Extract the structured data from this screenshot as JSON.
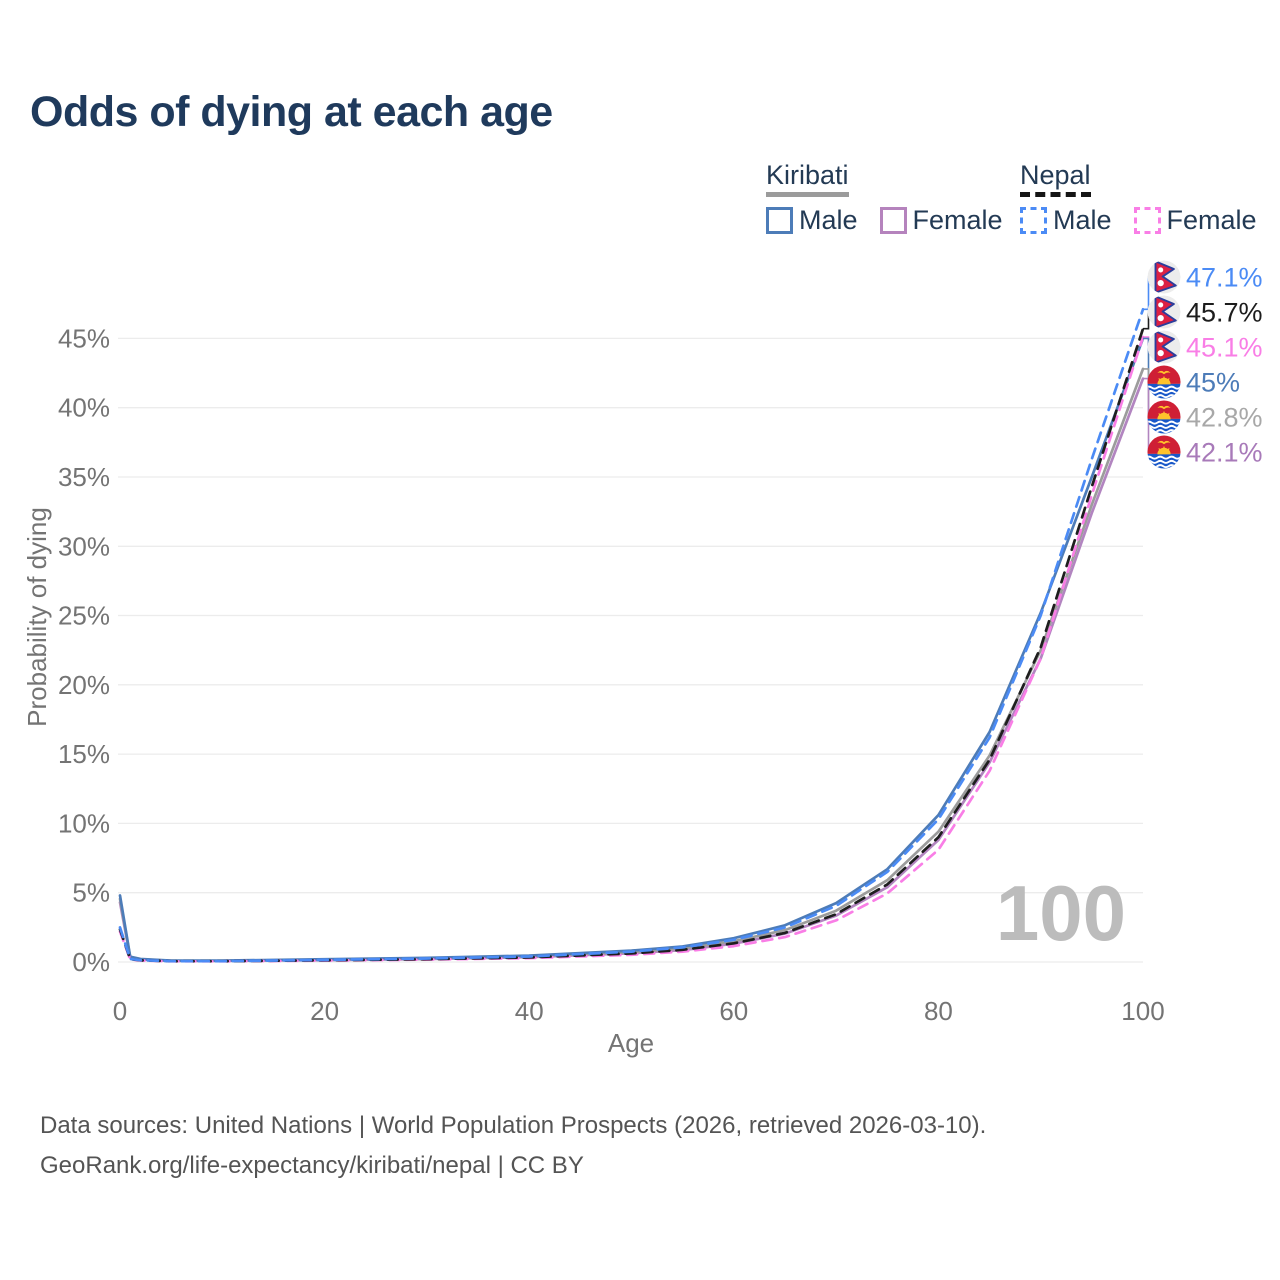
{
  "title": "Odds of dying at each age",
  "legend": {
    "groups": [
      {
        "country": "Kiribati",
        "line_style": "solid",
        "underline_color": "#9b9b9b",
        "items": [
          {
            "label": "Male",
            "color": "#4d7cb8"
          },
          {
            "label": "Female",
            "color": "#b583bd"
          }
        ]
      },
      {
        "country": "Nepal",
        "line_style": "dashed",
        "underline_color": "#151515",
        "items": [
          {
            "label": "Male",
            "color": "#4b8bf5"
          },
          {
            "label": "Female",
            "color": "#f97ee6"
          }
        ]
      }
    ]
  },
  "chart_data": {
    "type": "line",
    "title": "Odds of dying at each age",
    "xlabel": "Age",
    "ylabel": "Probability of dying",
    "xlim": [
      0,
      100
    ],
    "ylim": [
      0,
      49
    ],
    "grid": "horizontal",
    "age_counter": "100",
    "x_ticks": [
      0,
      20,
      40,
      60,
      80,
      100
    ],
    "y_ticks": [
      "0%",
      "5%",
      "10%",
      "15%",
      "20%",
      "25%",
      "30%",
      "35%",
      "40%",
      "45%"
    ],
    "x": [
      0,
      1,
      2,
      5,
      10,
      20,
      30,
      40,
      50,
      55,
      60,
      65,
      70,
      75,
      80,
      85,
      90,
      95,
      100
    ],
    "series": [
      {
        "name": "Nepal Male",
        "country": "nepal",
        "style": "dashed",
        "color": "#4b8bf5",
        "label_color": "#4b8bf5",
        "end_label": "47.1%",
        "values": [
          2.5,
          0.22,
          0.13,
          0.06,
          0.06,
          0.15,
          0.25,
          0.4,
          0.75,
          1.05,
          1.6,
          2.5,
          4.05,
          6.5,
          10.3,
          16.2,
          25.0,
          36.3,
          47.1
        ]
      },
      {
        "name": "Nepal Total",
        "country": "nepal",
        "style": "dashed",
        "color": "#1e1e1e",
        "label_color": "#1c1c1c",
        "end_label": "45.7%",
        "values": [
          2.35,
          0.2,
          0.12,
          0.055,
          0.055,
          0.12,
          0.2,
          0.33,
          0.62,
          0.88,
          1.35,
          2.1,
          3.45,
          5.6,
          9.0,
          14.6,
          22.7,
          34.3,
          45.7
        ]
      },
      {
        "name": "Nepal Female",
        "country": "nepal",
        "style": "dashed",
        "color": "#f97ee6",
        "label_color": "#f97ee6",
        "end_label": "45.1%",
        "values": [
          2.2,
          0.18,
          0.11,
          0.05,
          0.05,
          0.1,
          0.17,
          0.28,
          0.52,
          0.75,
          1.15,
          1.8,
          3.0,
          4.95,
          8.1,
          13.8,
          21.9,
          33.7,
          45.1
        ]
      },
      {
        "name": "Kiribati Male",
        "country": "kiribati",
        "style": "solid",
        "color": "#4d7cb8",
        "label_color": "#4d7cb8",
        "end_label": "45%",
        "values": [
          4.8,
          0.38,
          0.22,
          0.1,
          0.1,
          0.2,
          0.3,
          0.46,
          0.82,
          1.12,
          1.72,
          2.65,
          4.25,
          6.7,
          10.6,
          16.6,
          25.2,
          35.0,
          45.0
        ]
      },
      {
        "name": "Kiribati Total",
        "country": "kiribati",
        "style": "solid",
        "color": "#9c9c9c",
        "label_color": "#a8a8a8",
        "end_label": "42.8%",
        "values": [
          4.55,
          0.35,
          0.2,
          0.09,
          0.09,
          0.17,
          0.26,
          0.4,
          0.72,
          0.98,
          1.5,
          2.3,
          3.7,
          5.9,
          9.4,
          14.9,
          22.5,
          33.0,
          42.8
        ]
      },
      {
        "name": "Kiribati Female",
        "country": "kiribati",
        "style": "solid",
        "color": "#b285c0",
        "label_color": "#a87ab9",
        "end_label": "42.1%",
        "values": [
          4.3,
          0.32,
          0.18,
          0.08,
          0.08,
          0.14,
          0.22,
          0.35,
          0.63,
          0.86,
          1.32,
          2.05,
          3.35,
          5.4,
          8.8,
          14.4,
          21.9,
          32.4,
          42.1
        ]
      }
    ]
  },
  "footer": {
    "line1": "Data sources: United Nations | World Population Prospects (2026, retrieved 2026-03-10).",
    "line2": "GeoRank.org/life-expectancy/kiribati/nepal | CC BY"
  }
}
